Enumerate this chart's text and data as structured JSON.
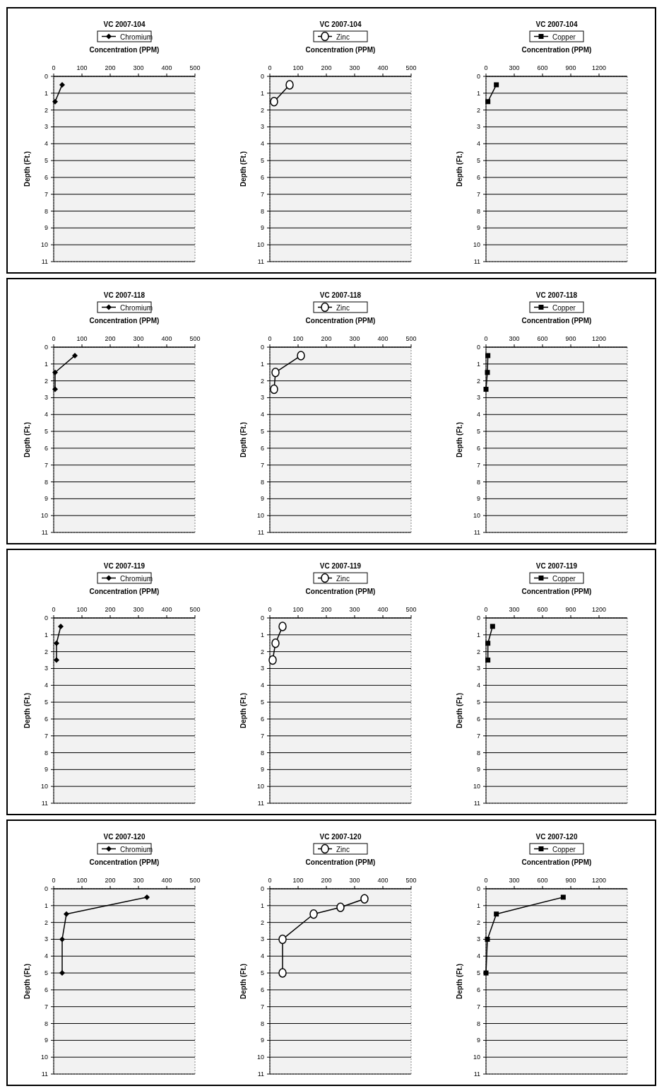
{
  "chart_data": [
    {
      "type": "line",
      "title": "VC 2007-104",
      "xlabel": "Concentration (PPM)",
      "ylabel": "Depth (Ft.)",
      "xlim": [
        0,
        500
      ],
      "xticks": [
        0,
        100,
        200,
        300,
        400,
        500
      ],
      "ylim": [
        11,
        0
      ],
      "yticks": [
        0,
        1,
        2,
        3,
        4,
        5,
        6,
        7,
        8,
        9,
        10,
        11
      ],
      "grid": "y",
      "legend": "top",
      "marker": "diamond",
      "series": [
        {
          "name": "Chromium",
          "color": "#000000",
          "x": [
            30,
            5
          ],
          "values": [
            0.5,
            1.5
          ]
        }
      ]
    },
    {
      "type": "line",
      "title": "VC 2007-104",
      "xlabel": "Concentration (PPM)",
      "ylabel": "Depth (Ft.)",
      "xlim": [
        0,
        500
      ],
      "xticks": [
        0,
        100,
        200,
        300,
        400,
        500
      ],
      "ylim": [
        11,
        0
      ],
      "yticks": [
        0,
        1,
        2,
        3,
        4,
        5,
        6,
        7,
        8,
        9,
        10,
        11
      ],
      "grid": "y",
      "legend": "top",
      "marker": "circle",
      "series": [
        {
          "name": "Zinc",
          "color": "#000000",
          "x": [
            70,
            15
          ],
          "values": [
            0.5,
            1.5
          ]
        }
      ]
    },
    {
      "type": "line",
      "title": "VC 2007-104",
      "xlabel": "Concentration (PPM)",
      "ylabel": "Depth (Ft.)",
      "xlim": [
        0,
        1500
      ],
      "xticks": [
        0,
        300,
        600,
        900,
        1200
      ],
      "ylim": [
        11,
        0
      ],
      "yticks": [
        0,
        1,
        2,
        3,
        4,
        5,
        6,
        7,
        8,
        9,
        10,
        11
      ],
      "grid": "y",
      "legend": "top",
      "marker": "square",
      "series": [
        {
          "name": "Copper",
          "color": "#000000",
          "x": [
            110,
            20
          ],
          "values": [
            0.5,
            1.5
          ]
        }
      ]
    },
    {
      "type": "line",
      "title": "VC 2007-118",
      "xlabel": "Concentration (PPM)",
      "ylabel": "Depth (Ft.)",
      "xlim": [
        0,
        500
      ],
      "xticks": [
        0,
        100,
        200,
        300,
        400,
        500
      ],
      "ylim": [
        11,
        0
      ],
      "yticks": [
        0,
        1,
        2,
        3,
        4,
        5,
        6,
        7,
        8,
        9,
        10,
        11
      ],
      "grid": "y",
      "legend": "top",
      "marker": "diamond",
      "series": [
        {
          "name": "Chromium",
          "color": "#000000",
          "x": [
            75,
            5,
            5
          ],
          "values": [
            0.5,
            1.5,
            2.5
          ]
        }
      ]
    },
    {
      "type": "line",
      "title": "VC 2007-118",
      "xlabel": "Concentration (PPM)",
      "ylabel": "Depth (Ft.)",
      "xlim": [
        0,
        500
      ],
      "xticks": [
        0,
        100,
        200,
        300,
        400,
        500
      ],
      "ylim": [
        11,
        0
      ],
      "yticks": [
        0,
        1,
        2,
        3,
        4,
        5,
        6,
        7,
        8,
        9,
        10,
        11
      ],
      "grid": "y",
      "legend": "top",
      "marker": "circle",
      "series": [
        {
          "name": "Zinc",
          "color": "#000000",
          "x": [
            110,
            20,
            15
          ],
          "values": [
            0.5,
            1.5,
            2.5
          ]
        }
      ]
    },
    {
      "type": "line",
      "title": "VC 2007-118",
      "xlabel": "Concentration (PPM)",
      "ylabel": "Depth (Ft.)",
      "xlim": [
        0,
        1500
      ],
      "xticks": [
        0,
        300,
        600,
        900,
        1200
      ],
      "ylim": [
        11,
        0
      ],
      "yticks": [
        0,
        1,
        2,
        3,
        4,
        5,
        6,
        7,
        8,
        9,
        10,
        11
      ],
      "grid": "y",
      "legend": "top",
      "marker": "square",
      "series": [
        {
          "name": "Copper",
          "color": "#000000",
          "x": [
            20,
            15,
            0
          ],
          "values": [
            0.5,
            1.5,
            2.5
          ]
        }
      ]
    },
    {
      "type": "line",
      "title": "VC 2007-119",
      "xlabel": "Concentration (PPM)",
      "ylabel": "Depth (Ft.)",
      "xlim": [
        0,
        500
      ],
      "xticks": [
        0,
        100,
        200,
        300,
        400,
        500
      ],
      "ylim": [
        11,
        0
      ],
      "yticks": [
        0,
        1,
        2,
        3,
        4,
        5,
        6,
        7,
        8,
        9,
        10,
        11
      ],
      "grid": "y",
      "legend": "top",
      "marker": "diamond",
      "series": [
        {
          "name": "Chromium",
          "color": "#000000",
          "x": [
            25,
            10,
            10
          ],
          "values": [
            0.5,
            1.5,
            2.5
          ]
        }
      ]
    },
    {
      "type": "line",
      "title": "VC 2007-119",
      "xlabel": "Concentration (PPM)",
      "ylabel": "Depth (Ft.)",
      "xlim": [
        0,
        500
      ],
      "xticks": [
        0,
        100,
        200,
        300,
        400,
        500
      ],
      "ylim": [
        11,
        0
      ],
      "yticks": [
        0,
        1,
        2,
        3,
        4,
        5,
        6,
        7,
        8,
        9,
        10,
        11
      ],
      "grid": "y",
      "legend": "top",
      "marker": "circle",
      "series": [
        {
          "name": "Zinc",
          "color": "#000000",
          "x": [
            45,
            20,
            10
          ],
          "values": [
            0.5,
            1.5,
            2.5
          ]
        }
      ]
    },
    {
      "type": "line",
      "title": "VC 2007-119",
      "xlabel": "Concentration (PPM)",
      "ylabel": "Depth (Ft.)",
      "xlim": [
        0,
        1500
      ],
      "xticks": [
        0,
        300,
        600,
        900,
        1200
      ],
      "ylim": [
        11,
        0
      ],
      "yticks": [
        0,
        1,
        2,
        3,
        4,
        5,
        6,
        7,
        8,
        9,
        10,
        11
      ],
      "grid": "y",
      "legend": "top",
      "marker": "square",
      "series": [
        {
          "name": "Copper",
          "color": "#000000",
          "x": [
            70,
            20,
            20
          ],
          "values": [
            0.5,
            1.5,
            2.5
          ]
        }
      ]
    },
    {
      "type": "line",
      "title": "VC 2007-120",
      "xlabel": "Concentration (PPM)",
      "ylabel": "Depth (Ft.)",
      "xlim": [
        0,
        500
      ],
      "xticks": [
        0,
        100,
        200,
        300,
        400,
        500
      ],
      "ylim": [
        11,
        0
      ],
      "yticks": [
        0,
        1,
        2,
        3,
        4,
        5,
        6,
        7,
        8,
        9,
        10,
        11
      ],
      "grid": "y",
      "legend": "top",
      "marker": "diamond",
      "series": [
        {
          "name": "Chromium",
          "color": "#000000",
          "x": [
            330,
            45,
            30,
            30
          ],
          "values": [
            0.5,
            1.5,
            3,
            5
          ]
        }
      ]
    },
    {
      "type": "line",
      "title": "VC 2007-120",
      "xlabel": "Concentration (PPM)",
      "ylabel": "Depth (Ft.)",
      "xlim": [
        0,
        500
      ],
      "xticks": [
        0,
        100,
        200,
        300,
        400,
        500
      ],
      "ylim": [
        11,
        0
      ],
      "yticks": [
        0,
        1,
        2,
        3,
        4,
        5,
        6,
        7,
        8,
        9,
        10,
        11
      ],
      "grid": "y",
      "legend": "top",
      "marker": "circle",
      "series": [
        {
          "name": "Zinc",
          "color": "#000000",
          "x": [
            335,
            250,
            155,
            45,
            45
          ],
          "values": [
            0.6,
            1.1,
            1.5,
            3,
            5
          ]
        }
      ]
    },
    {
      "type": "line",
      "title": "VC 2007-120",
      "xlabel": "Concentration (PPM)",
      "ylabel": "Depth (Ft.)",
      "xlim": [
        0,
        1500
      ],
      "xticks": [
        0,
        300,
        600,
        900,
        1200
      ],
      "ylim": [
        11,
        0
      ],
      "yticks": [
        0,
        1,
        2,
        3,
        4,
        5,
        6,
        7,
        8,
        9,
        10,
        11
      ],
      "grid": "y",
      "legend": "top",
      "marker": "square",
      "series": [
        {
          "name": "Copper",
          "color": "#000000",
          "x": [
            820,
            110,
            15,
            0
          ],
          "values": [
            0.5,
            1.5,
            3,
            5
          ]
        }
      ]
    }
  ]
}
